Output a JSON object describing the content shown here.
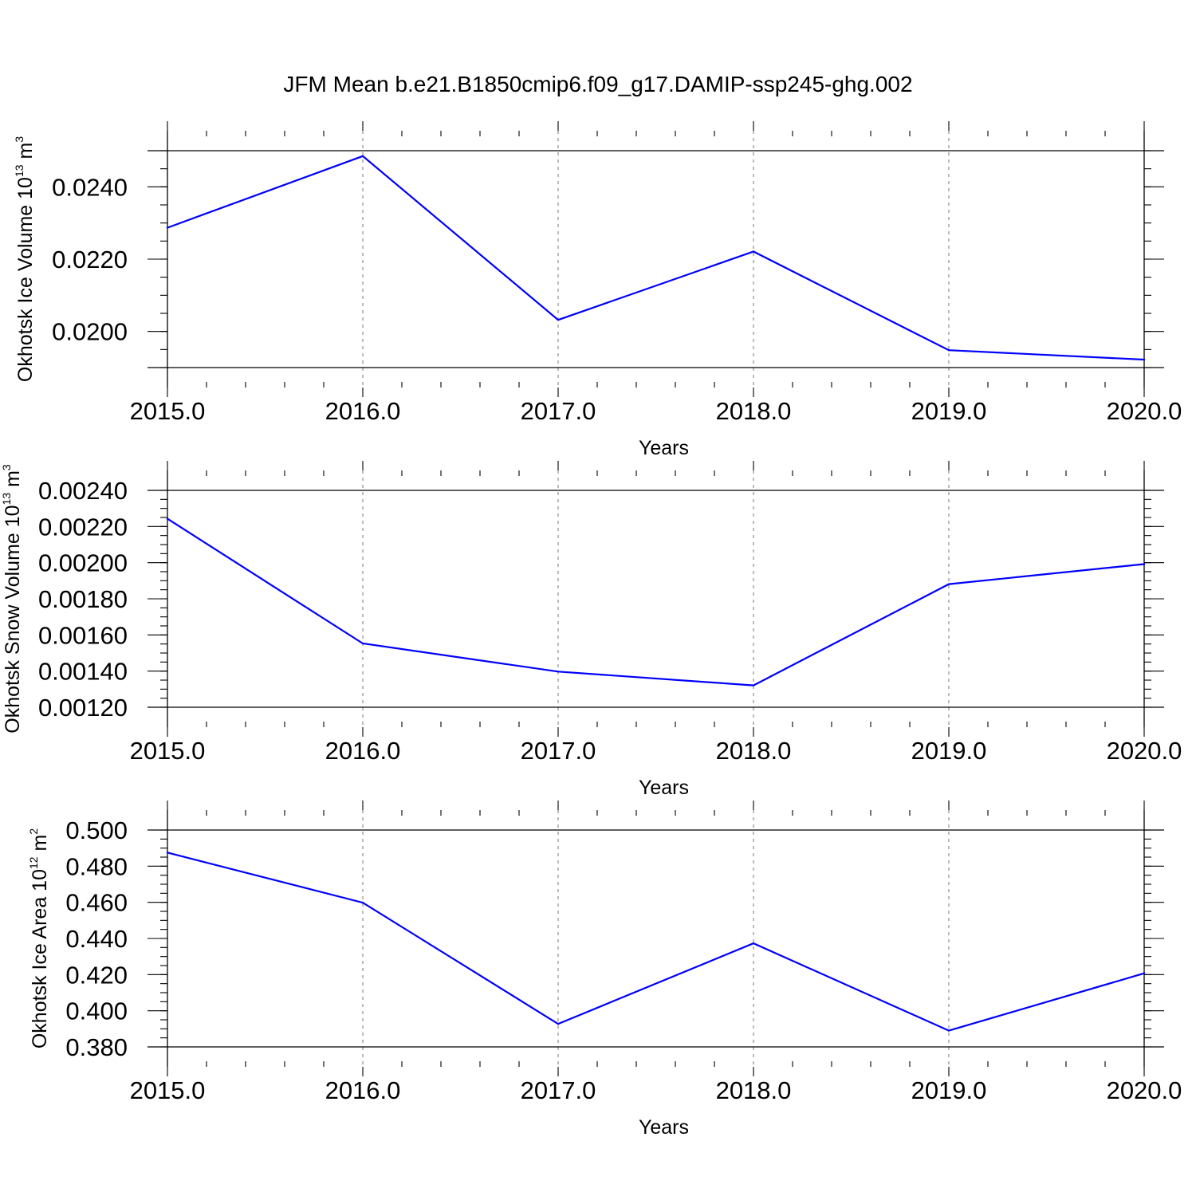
{
  "figure": {
    "title": "JFM Mean b.e21.B1850cmip6.f09_g17.DAMIP-ssp245-ghg.002"
  },
  "chart_data": [
    {
      "type": "line",
      "ylabel": "Okhotsk Ice Volume 10",
      "ylabel_exp": "13",
      "ylabel_unit": " m",
      "ylabel_unit_exp": "3",
      "xlabel": "Years",
      "xlim": [
        2015,
        2020
      ],
      "ylim": [
        0.019,
        0.025
      ],
      "x_ticks": [
        2015,
        2016,
        2017,
        2018,
        2019,
        2020
      ],
      "x_tick_labels": [
        "2015.0",
        "2016.0",
        "2017.0",
        "2018.0",
        "2019.0",
        "2020.0"
      ],
      "y_ticks": [
        0.02,
        0.022,
        0.024
      ],
      "y_tick_labels": [
        "0.0200",
        "0.0220",
        "0.0240"
      ],
      "y_minor_step": 0.0005,
      "grid": "x-dashed",
      "color": "#0000ff",
      "x": [
        2015,
        2016,
        2017,
        2018,
        2019,
        2020
      ],
      "y": [
        0.02287,
        0.02485,
        0.02032,
        0.02221,
        0.01948,
        0.01922
      ]
    },
    {
      "type": "line",
      "ylabel": "Okhotsk Snow Volume 10",
      "ylabel_exp": "13",
      "ylabel_unit": " m",
      "ylabel_unit_exp": "3",
      "xlabel": "Years",
      "xlim": [
        2015,
        2020
      ],
      "ylim": [
        0.0012,
        0.0024
      ],
      "x_ticks": [
        2015,
        2016,
        2017,
        2018,
        2019,
        2020
      ],
      "x_tick_labels": [
        "2015.0",
        "2016.0",
        "2017.0",
        "2018.0",
        "2019.0",
        "2020.0"
      ],
      "y_ticks": [
        0.0012,
        0.0014,
        0.0016,
        0.0018,
        0.002,
        0.0022,
        0.0024
      ],
      "y_tick_labels": [
        "0.00120",
        "0.00140",
        "0.00160",
        "0.00180",
        "0.00200",
        "0.00220",
        "0.00240"
      ],
      "y_minor_step": 5e-05,
      "grid": "x-dashed",
      "color": "#0000ff",
      "x": [
        2015,
        2016,
        2017,
        2018,
        2019,
        2020
      ],
      "y": [
        0.002243,
        0.001553,
        0.001397,
        0.001321,
        0.001881,
        0.001992
      ]
    },
    {
      "type": "line",
      "ylabel": "Okhotsk Ice Area 10",
      "ylabel_exp": "12",
      "ylabel_unit": " m",
      "ylabel_unit_exp": "2",
      "xlabel": "Years",
      "xlim": [
        2015,
        2020
      ],
      "ylim": [
        0.38,
        0.5
      ],
      "x_ticks": [
        2015,
        2016,
        2017,
        2018,
        2019,
        2020
      ],
      "x_tick_labels": [
        "2015.0",
        "2016.0",
        "2017.0",
        "2018.0",
        "2019.0",
        "2020.0"
      ],
      "y_ticks": [
        0.38,
        0.4,
        0.42,
        0.44,
        0.46,
        0.48,
        0.5
      ],
      "y_tick_labels": [
        "0.380",
        "0.400",
        "0.420",
        "0.440",
        "0.460",
        "0.480",
        "0.500"
      ],
      "y_minor_step": 0.005,
      "grid": "x-dashed",
      "color": "#0000ff",
      "x": [
        2015,
        2016,
        2017,
        2018,
        2019,
        2020
      ],
      "y": [
        0.4875,
        0.4598,
        0.3927,
        0.4373,
        0.389,
        0.4207
      ]
    }
  ]
}
